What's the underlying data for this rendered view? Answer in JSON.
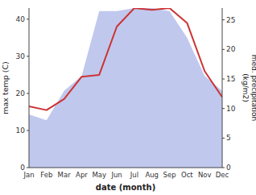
{
  "chart_data": {
    "type": "line",
    "categories": [
      "Jan",
      "Feb",
      "Mar",
      "Apr",
      "May",
      "Jun",
      "Jul",
      "Aug",
      "Sep",
      "Oct",
      "Nov",
      "Dec"
    ],
    "xlabel": "date (month)",
    "ylabel": "max temp (C)",
    "y2label": "med. precipitation\n(kg/m2)",
    "ylim": [
      0,
      43
    ],
    "yticks": [
      0,
      10,
      20,
      30,
      40
    ],
    "y2lim": [
      0,
      27
    ],
    "y2ticks": [
      0,
      5,
      10,
      15,
      20,
      25
    ],
    "grid": false,
    "series": [
      {
        "type": "area",
        "axis": "y2",
        "color": "#c0c8ee",
        "values": [
          9.0,
          8.0,
          13.0,
          15.5,
          26.5,
          26.5,
          27.0,
          27.0,
          26.5,
          22.0,
          15.5,
          13.0
        ]
      },
      {
        "type": "line",
        "axis": "y",
        "color": "#cc3333",
        "values": [
          16.5,
          15.5,
          18.5,
          24.5,
          25.0,
          38.0,
          43.0,
          42.5,
          43.0,
          39.0,
          26.0,
          19.0
        ]
      }
    ]
  }
}
